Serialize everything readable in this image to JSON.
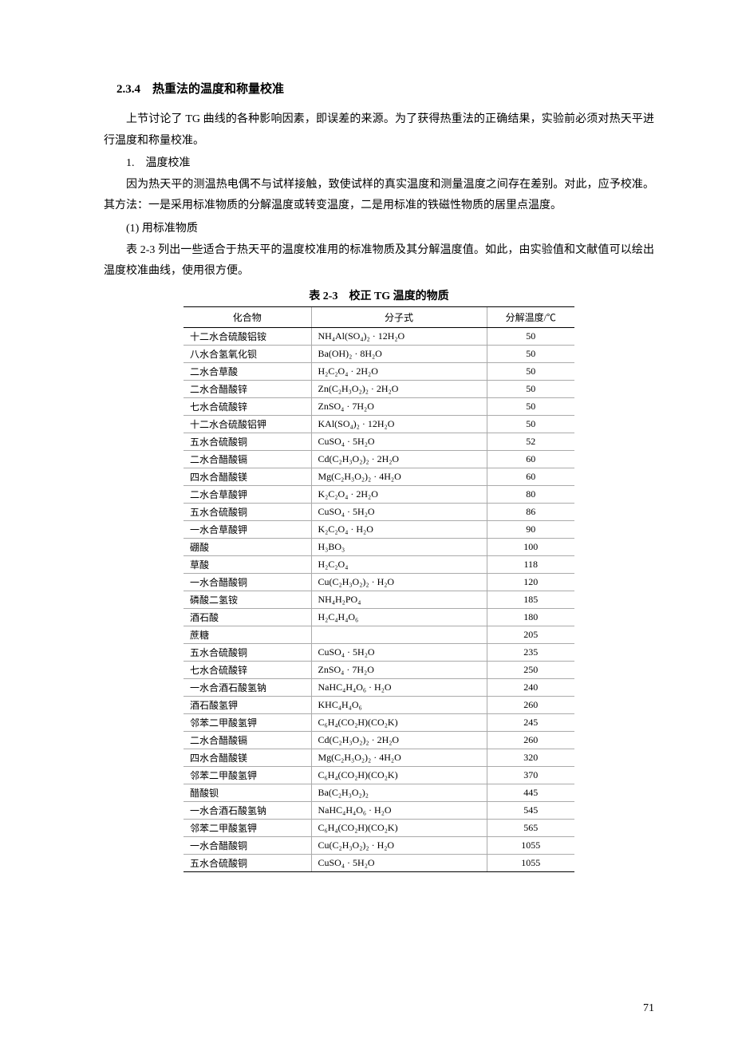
{
  "heading": "2.3.4　热重法的温度和称量校准",
  "para1": "上节讨论了 TG 曲线的各种影响因素，即误差的来源。为了获得热重法的正确结果，实验前必须对热天平进行温度和称量校准。",
  "item1": "1.　温度校准",
  "para2": "因为热天平的测温热电偶不与试样接触，致使试样的真实温度和测量温度之间存在差别。对此，应予校准。其方法：一是采用标准物质的分解温度或转变温度，二是用标准的铁磁性物质的居里点温度。",
  "item2": "(1) 用标准物质",
  "para3": "表 2-3 列出一些适合于热天平的温度校准用的标准物质及其分解温度值。如此，由实验值和文献值可以绘出温度校准曲线，使用很方便。",
  "table_title": "表 2-3　校正 TG 温度的物质",
  "table": {
    "headers": [
      "化合物",
      "分子式",
      "分解温度/℃"
    ],
    "rows": [
      {
        "compound": "十二水合硫酸铝铵",
        "formula": "NH₄Al(SO₄)₂ · 12H₂O",
        "temp": "50"
      },
      {
        "compound": "八水合氢氧化钡",
        "formula": "Ba(OH)₂ · 8H₂O",
        "temp": "50"
      },
      {
        "compound": "二水合草酸",
        "formula": "H₂C₂O₄ · 2H₂O",
        "temp": "50"
      },
      {
        "compound": "二水合醋酸锌",
        "formula": "Zn(C₂H₃O₂)₂ · 2H₂O",
        "temp": "50"
      },
      {
        "compound": "七水合硫酸锌",
        "formula": "ZnSO₄ · 7H₂O",
        "temp": "50"
      },
      {
        "compound": "十二水合硫酸铝钾",
        "formula": "KAl(SO₄)₂ · 12H₂O",
        "temp": "50"
      },
      {
        "compound": "五水合硫酸铜",
        "formula": "CuSO₄ · 5H₂O",
        "temp": "52"
      },
      {
        "compound": "二水合醋酸镉",
        "formula": "Cd(C₂H₃O₂)₂ · 2H₂O",
        "temp": "60"
      },
      {
        "compound": "四水合醋酸镁",
        "formula": "Mg(C₂H₃O₂)₂ · 4H₂O",
        "temp": "60"
      },
      {
        "compound": "二水合草酸钾",
        "formula": "K₂C₂O₄ · 2H₂O",
        "temp": "80"
      },
      {
        "compound": "五水合硫酸铜",
        "formula": "CuSO₄ · 5H₂O",
        "temp": "86"
      },
      {
        "compound": "一水合草酸钾",
        "formula": "K₂C₂O₄ · H₂O",
        "temp": "90"
      },
      {
        "compound": "硼酸",
        "formula": "H₃BO₃",
        "temp": "100"
      },
      {
        "compound": "草酸",
        "formula": "H₂C₂O₄",
        "temp": "118"
      },
      {
        "compound": "一水合醋酸铜",
        "formula": "Cu(C₂H₃O₂)₂ · H₂O",
        "temp": "120"
      },
      {
        "compound": "磷酸二氢铵",
        "formula": "NH₄H₂PO₄",
        "temp": "185"
      },
      {
        "compound": "酒石酸",
        "formula": "H₂C₄H₄O₆",
        "temp": "180"
      },
      {
        "compound": "蔗糖",
        "formula": "",
        "temp": "205"
      },
      {
        "compound": "五水合硫酸铜",
        "formula": "CuSO₄ · 5H₂O",
        "temp": "235"
      },
      {
        "compound": "七水合硫酸锌",
        "formula": "ZnSO₄ · 7H₂O",
        "temp": "250"
      },
      {
        "compound": "一水合酒石酸氢钠",
        "formula": "NaHC₄H₄O₆ · H₂O",
        "temp": "240"
      },
      {
        "compound": "酒石酸氢钾",
        "formula": "KHC₄H₄O₆",
        "temp": "260"
      },
      {
        "compound": "邻苯二甲酸氢钾",
        "formula": "C₆H₄(CO₂H)(CO₂K)",
        "temp": "245"
      },
      {
        "compound": "二水合醋酸镉",
        "formula": "Cd(C₂H₃O₂)₂ · 2H₂O",
        "temp": "260"
      },
      {
        "compound": "四水合醋酸镁",
        "formula": "Mg(C₂H₃O₂)₂ · 4H₂O",
        "temp": "320"
      },
      {
        "compound": "邻苯二甲酸氢钾",
        "formula": "C₆H₄(CO₂H)(CO₂K)",
        "temp": "370"
      },
      {
        "compound": "醋酸钡",
        "formula": "Ba(C₂H₃O₂)₂",
        "temp": "445"
      },
      {
        "compound": "一水合酒石酸氢钠",
        "formula": "NaHC₄H₄O₆ · H₂O",
        "temp": "545"
      },
      {
        "compound": "邻苯二甲酸氢钾",
        "formula": "C₆H₄(CO₂H)(CO₂K)",
        "temp": "565"
      },
      {
        "compound": "一水合醋酸铜",
        "formula": "Cu(C₂H₃O₂)₂ · H₂O",
        "temp": "1055"
      },
      {
        "compound": "五水合硫酸铜",
        "formula": "CuSO₄ · 5H₂O",
        "temp": "1055"
      }
    ]
  },
  "page_number": "71"
}
